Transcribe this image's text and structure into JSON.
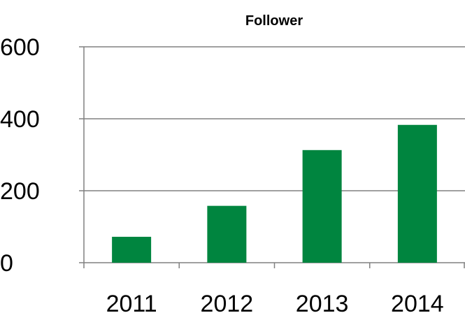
{
  "chart_data": {
    "type": "bar",
    "title": "Follower",
    "categories": [
      "2011",
      "2012",
      "2013",
      "2014"
    ],
    "values": [
      72,
      158,
      313,
      383
    ],
    "xlabel": "",
    "ylabel": "",
    "ylim": [
      0,
      600
    ],
    "yticks": [
      0,
      200,
      400,
      600
    ],
    "ytick_labels": [
      "0",
      "200",
      "400",
      "600"
    ],
    "grid": true,
    "legend": "none",
    "colors": {
      "bar": "#00853F",
      "gridline": "#808080",
      "axis": "#808080"
    }
  }
}
